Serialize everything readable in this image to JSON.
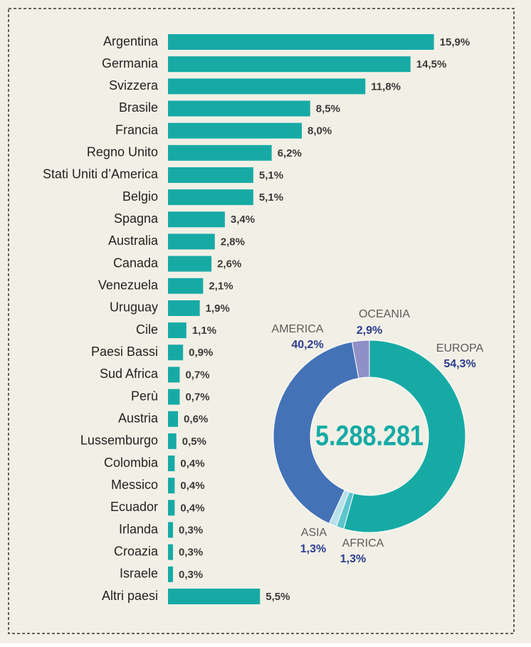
{
  "chart_data": [
    {
      "type": "bar",
      "orientation": "horizontal",
      "color": "#17aaa5",
      "categories": [
        "Argentina",
        "Germania",
        "Svizzera",
        "Brasile",
        "Francia",
        "Regno Unito",
        "Stati Uniti d’America",
        "Belgio",
        "Spagna",
        "Australia",
        "Canada",
        "Venezuela",
        "Uruguay",
        "Cile",
        "Paesi Bassi",
        "Sud Africa",
        "Perù",
        "Austria",
        "Lussemburgo",
        "Colombia",
        "Messico",
        "Ecuador",
        "Irlanda",
        "Croazia",
        "Israele",
        "Altri paesi"
      ],
      "values": [
        15.9,
        14.5,
        11.8,
        8.5,
        8.0,
        6.2,
        5.1,
        5.1,
        3.4,
        2.8,
        2.6,
        2.1,
        1.9,
        1.1,
        0.9,
        0.7,
        0.7,
        0.6,
        0.5,
        0.4,
        0.4,
        0.4,
        0.3,
        0.3,
        0.3,
        5.5
      ],
      "value_labels": [
        "15,9%",
        "14,5%",
        "11,8%",
        "8,5%",
        "8,0%",
        "6,2%",
        "5,1%",
        "5,1%",
        "3,4%",
        "2,8%",
        "2,6%",
        "2,1%",
        "1,9%",
        "1,1%",
        "0,9%",
        "0,7%",
        "0,7%",
        "0,6%",
        "0,5%",
        "0,4%",
        "0,4%",
        "0,4%",
        "0,3%",
        "0,3%",
        "0,3%",
        "5,5%"
      ],
      "xlim": [
        0,
        16
      ]
    },
    {
      "type": "donut",
      "center_text": "5.288.281",
      "categories": [
        "EUROPA",
        "AFRICA",
        "ASIA",
        "AMERICA",
        "OCEANIA"
      ],
      "values": [
        54.3,
        1.3,
        1.3,
        40.2,
        2.9
      ],
      "value_labels": [
        "54,3%",
        "1,3%",
        "1,3%",
        "40,2%",
        "2,9%"
      ],
      "colors": [
        "#17aaa5",
        "#5ec5cd",
        "#b9e1ea",
        "#4472b6",
        "#9090c6"
      ]
    }
  ]
}
